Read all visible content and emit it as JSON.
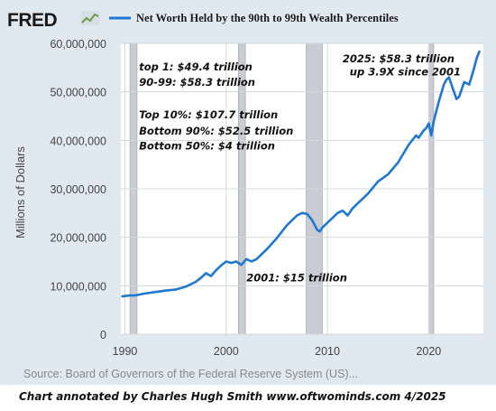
{
  "logo": {
    "text": "FRED",
    "icon": "fred-chart-icon"
  },
  "chart_data": {
    "type": "line",
    "title": "Net Worth Held by the 90th to 99th Wealth Percentiles",
    "ylabel": "Millions of Dollars",
    "xlabel": "",
    "xlim": [
      1989.6,
      2025.4
    ],
    "ylim": [
      0,
      60000000
    ],
    "y_ticks": [
      0,
      10000000,
      20000000,
      30000000,
      40000000,
      50000000,
      60000000
    ],
    "y_tick_labels": [
      "0",
      "10,000,000",
      "20,000,000",
      "30,000,000",
      "40,000,000",
      "50,000,000",
      "60,000,000"
    ],
    "x_ticks": [
      1990,
      2000,
      2010,
      2020
    ],
    "x_tick_labels": [
      "1990",
      "2000",
      "2010",
      "2020"
    ],
    "grid": true,
    "legend_position": "top",
    "line_color": "#1e78d2",
    "recession_color": "#c9ccd2",
    "recessions": [
      [
        1990.5,
        1991.2
      ],
      [
        2001.2,
        2001.9
      ],
      [
        2007.9,
        2009.5
      ],
      [
        2020.0,
        2020.5
      ]
    ],
    "series": [
      {
        "name": "Net Worth Held by the 90th to 99th Wealth Percentiles",
        "x": [
          1989.75,
          1990.5,
          1991.0,
          1992.0,
          1993.0,
          1994.0,
          1995.0,
          1996.0,
          1997.0,
          1997.5,
          1998.0,
          1998.5,
          1999.0,
          1999.5,
          2000.0,
          2000.5,
          2001.0,
          2001.5,
          2002.0,
          2002.5,
          2003.0,
          2003.5,
          2004.0,
          2005.0,
          2006.0,
          2007.0,
          2007.5,
          2008.0,
          2008.5,
          2009.0,
          2009.25,
          2009.5,
          2010.0,
          2010.5,
          2011.0,
          2011.5,
          2012.0,
          2012.5,
          2013.0,
          2014.0,
          2015.0,
          2016.0,
          2017.0,
          2018.0,
          2018.75,
          2019.0,
          2019.5,
          2019.75,
          2020.0,
          2020.25,
          2020.5,
          2021.0,
          2021.5,
          2021.75,
          2022.0,
          2022.5,
          2022.75,
          2023.0,
          2023.5,
          2024.0,
          2024.5,
          2024.75,
          2025.0
        ],
        "y": [
          7800000,
          8000000,
          8000000,
          8400000,
          8700000,
          9000000,
          9200000,
          9800000,
          10800000,
          11600000,
          12600000,
          12000000,
          13200000,
          14200000,
          15000000,
          14700000,
          15000000,
          14300000,
          15500000,
          15000000,
          15500000,
          16500000,
          17500000,
          19800000,
          22500000,
          24500000,
          25000000,
          24800000,
          23500000,
          21500000,
          21200000,
          22000000,
          23000000,
          24000000,
          25000000,
          25500000,
          24500000,
          26000000,
          27000000,
          29000000,
          31500000,
          33000000,
          35500000,
          39000000,
          41000000,
          40500000,
          42000000,
          42500000,
          43500000,
          41000000,
          44000000,
          48000000,
          51500000,
          52500000,
          53000000,
          50000000,
          48500000,
          49000000,
          52000000,
          51500000,
          55000000,
          57000000,
          58300000
        ]
      }
    ],
    "annotations": [
      {
        "text": "top 1:  $49.4 trillion",
        "x": 1991.4,
        "y": 54400000
      },
      {
        "text": "90-99: $58.3 trillion",
        "x": 1991.4,
        "y": 51200000
      },
      {
        "text": "Top 10%: $107.7 trillion",
        "x": 1991.4,
        "y": 44500000
      },
      {
        "text": "Bottom 90%: $52.5 trillion",
        "x": 1991.4,
        "y": 41200000
      },
      {
        "text": "Bottom 50%: $4 trillion",
        "x": 1991.4,
        "y": 38100000
      },
      {
        "text": "2001: $15 trillion",
        "x": 2002.0,
        "y": 10900000
      },
      {
        "text": "2025: $58.3 trillion",
        "x": 2011.5,
        "y": 56100000
      },
      {
        "text": "up 3.9X since 2001",
        "x": 2012.2,
        "y": 53400000
      }
    ]
  },
  "footer": {
    "source": "Source: Board of Governors of the Federal Reserve System (US)...",
    "credit": "Chart annotated by Charles Hugh Smith  www.oftwominds.com  4/2025"
  }
}
